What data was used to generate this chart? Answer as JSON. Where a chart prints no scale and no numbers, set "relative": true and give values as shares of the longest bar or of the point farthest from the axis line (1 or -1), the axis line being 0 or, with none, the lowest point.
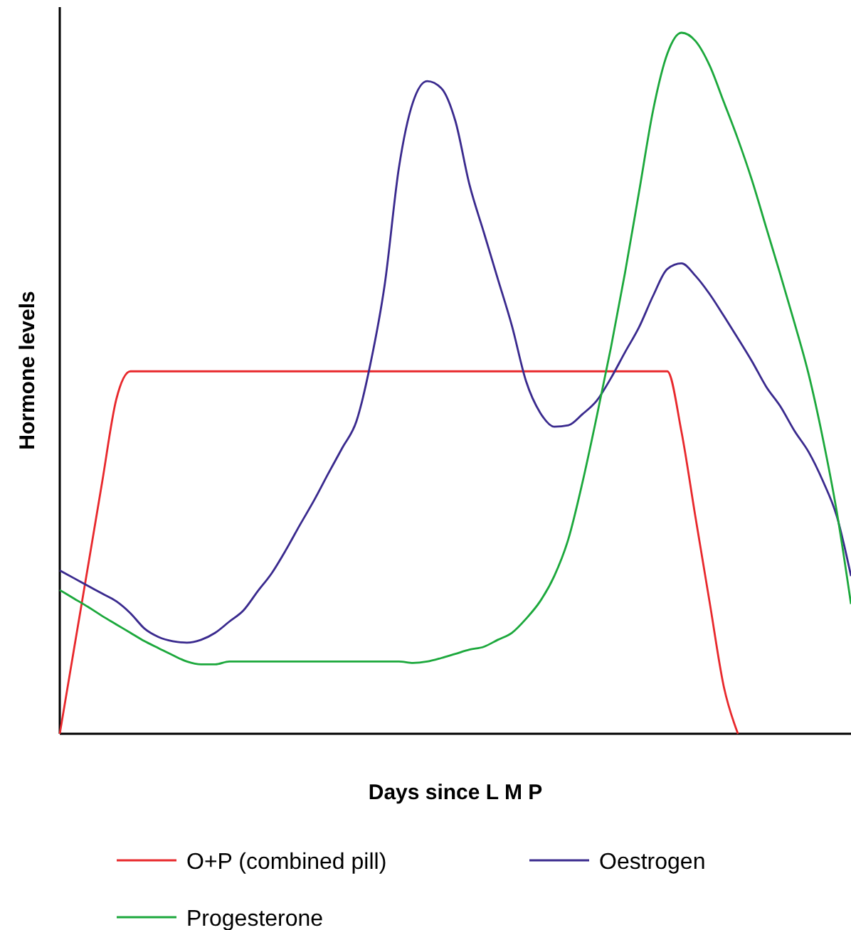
{
  "chart_data": {
    "type": "line",
    "relative": true,
    "xlabel": "Days since L M P",
    "ylabel": "Hormone levels",
    "legend": "bottom",
    "marker": "none",
    "line_style": "solid",
    "categories": [
      null,
      null,
      null,
      null,
      null,
      null,
      null,
      null,
      null,
      null,
      null,
      null,
      null,
      null,
      null,
      null,
      null,
      null,
      null,
      null,
      null,
      null,
      null,
      null,
      null,
      null,
      null,
      null,
      null,
      null,
      null,
      null,
      null,
      null,
      null,
      null,
      null,
      null,
      null,
      null,
      null,
      null,
      null,
      null,
      null,
      null,
      null,
      null,
      null,
      null,
      null,
      null,
      null,
      null,
      null,
      null,
      null
    ],
    "series": [
      {
        "name": "O+P (combined pill)",
        "color": "#e8282c",
        "values": [
          0,
          0.12,
          0.239,
          0.359,
          0.477,
          0.517,
          0.517,
          0.517,
          0.517,
          0.517,
          0.517,
          0.517,
          0.517,
          0.517,
          0.517,
          0.517,
          0.517,
          0.517,
          0.517,
          0.517,
          0.517,
          0.517,
          0.517,
          0.517,
          0.517,
          0.517,
          0.517,
          0.517,
          0.517,
          0.517,
          0.517,
          0.517,
          0.517,
          0.517,
          0.517,
          0.517,
          0.517,
          0.517,
          0.517,
          0.517,
          0.517,
          0.517,
          0.517,
          0.517,
          0.431,
          0.308,
          0.187,
          0.067,
          0,
          null,
          null,
          null,
          null,
          null,
          null,
          null,
          null
        ]
      },
      {
        "name": "Oestrogen",
        "color": "#3a2a8e",
        "values": [
          0.233,
          0.222,
          0.211,
          0.2,
          0.189,
          0.172,
          0.15,
          0.138,
          0.132,
          0.13,
          0.134,
          0.144,
          0.16,
          0.176,
          0.203,
          0.229,
          0.262,
          0.298,
          0.333,
          0.371,
          0.408,
          0.446,
          0.529,
          0.641,
          0.807,
          0.901,
          0.931,
          0.921,
          0.874,
          0.783,
          0.716,
          0.649,
          0.582,
          0.503,
          0.458,
          0.438,
          0.44,
          0.456,
          0.475,
          0.507,
          0.544,
          0.58,
          0.625,
          0.663,
          0.671,
          0.653,
          0.627,
          0.596,
          0.564,
          0.531,
          0.495,
          0.467,
          0.432,
          0.402,
          0.361,
          0.31,
          0.225
        ]
      },
      {
        "name": "Progesterone",
        "color": "#1ca83c",
        "values": [
          0.205,
          0.193,
          0.181,
          0.168,
          0.156,
          0.144,
          0.132,
          0.122,
          0.112,
          0.103,
          0.099,
          0.099,
          0.103,
          0.103,
          0.103,
          0.103,
          0.103,
          0.103,
          0.103,
          0.103,
          0.103,
          0.103,
          0.103,
          0.103,
          0.103,
          0.101,
          0.103,
          0.108,
          0.114,
          0.12,
          0.124,
          0.134,
          0.144,
          0.164,
          0.189,
          0.225,
          0.278,
          0.359,
          0.452,
          0.55,
          0.657,
          0.773,
          0.89,
          0.97,
          1,
          0.988,
          0.953,
          0.901,
          0.848,
          0.789,
          0.722,
          0.655,
          0.586,
          0.513,
          0.422,
          0.316,
          0.185
        ]
      }
    ]
  }
}
